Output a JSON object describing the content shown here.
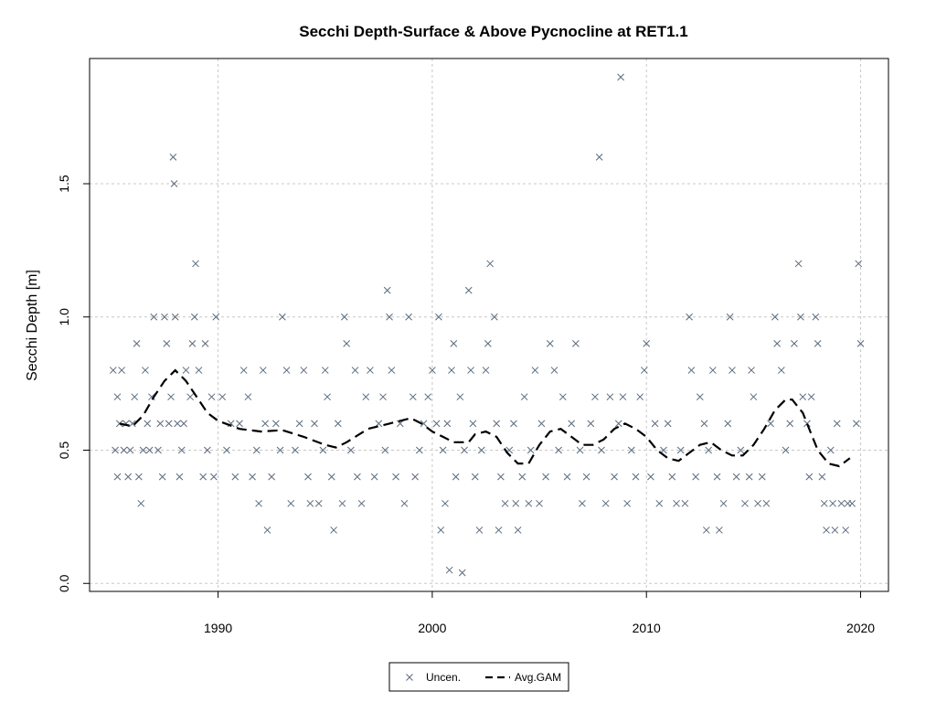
{
  "chart_data": {
    "type": "scatter",
    "title": "Secchi Depth-Surface & Above Pycnocline at RET1.1",
    "xlabel": "",
    "ylabel": "Secchi Depth [m]",
    "xlim": [
      1984,
      2021.3
    ],
    "ylim": [
      -0.03,
      1.97
    ],
    "x_ticks": [
      1990,
      2000,
      2010,
      2020
    ],
    "y_ticks": [
      0.0,
      0.5,
      1.0,
      1.5
    ],
    "y_tick_labels": [
      "0.0",
      "0.5",
      "1.0",
      "1.5"
    ],
    "grid": true,
    "legend_position": "bottom-center",
    "colors": {
      "points": "#5b6a7b",
      "gam_line": "#000000",
      "grid": "#c8c8c8"
    },
    "series": [
      {
        "name": "Uncen.",
        "kind": "points",
        "marker": "x",
        "points": [
          [
            1985.1,
            0.8
          ],
          [
            1985.2,
            0.5
          ],
          [
            1985.3,
            0.7
          ],
          [
            1985.3,
            0.4
          ],
          [
            1985.4,
            0.6
          ],
          [
            1985.5,
            0.8
          ],
          [
            1985.6,
            0.5
          ],
          [
            1985.7,
            0.6
          ],
          [
            1985.8,
            0.4
          ],
          [
            1985.9,
            0.5
          ],
          [
            1986.0,
            0.6
          ],
          [
            1986.1,
            0.7
          ],
          [
            1986.2,
            0.9
          ],
          [
            1986.3,
            0.4
          ],
          [
            1986.4,
            0.3
          ],
          [
            1986.5,
            0.5
          ],
          [
            1986.6,
            0.8
          ],
          [
            1986.7,
            0.6
          ],
          [
            1986.8,
            0.5
          ],
          [
            1986.9,
            0.7
          ],
          [
            1987.0,
            1.0
          ],
          [
            1987.2,
            0.5
          ],
          [
            1987.3,
            0.6
          ],
          [
            1987.4,
            0.4
          ],
          [
            1987.5,
            1.0
          ],
          [
            1987.6,
            0.9
          ],
          [
            1987.7,
            0.6
          ],
          [
            1987.8,
            0.7
          ],
          [
            1987.9,
            1.6
          ],
          [
            1987.95,
            1.5
          ],
          [
            1988.0,
            1.0
          ],
          [
            1988.1,
            0.6
          ],
          [
            1988.2,
            0.4
          ],
          [
            1988.3,
            0.5
          ],
          [
            1988.4,
            0.6
          ],
          [
            1988.5,
            0.8
          ],
          [
            1988.7,
            0.7
          ],
          [
            1988.8,
            0.9
          ],
          [
            1988.9,
            1.0
          ],
          [
            1988.95,
            1.2
          ],
          [
            1989.1,
            0.8
          ],
          [
            1989.3,
            0.4
          ],
          [
            1989.4,
            0.9
          ],
          [
            1989.5,
            0.5
          ],
          [
            1989.7,
            0.7
          ],
          [
            1989.8,
            0.4
          ],
          [
            1989.9,
            1.0
          ],
          [
            1990.2,
            0.7
          ],
          [
            1990.4,
            0.5
          ],
          [
            1990.6,
            0.6
          ],
          [
            1990.8,
            0.4
          ],
          [
            1991.0,
            0.6
          ],
          [
            1991.2,
            0.8
          ],
          [
            1991.4,
            0.7
          ],
          [
            1991.6,
            0.4
          ],
          [
            1991.8,
            0.5
          ],
          [
            1991.9,
            0.3
          ],
          [
            1992.1,
            0.8
          ],
          [
            1992.2,
            0.6
          ],
          [
            1992.3,
            0.2
          ],
          [
            1992.5,
            0.4
          ],
          [
            1992.7,
            0.6
          ],
          [
            1992.9,
            0.5
          ],
          [
            1993.0,
            1.0
          ],
          [
            1993.2,
            0.8
          ],
          [
            1993.4,
            0.3
          ],
          [
            1993.6,
            0.5
          ],
          [
            1993.8,
            0.6
          ],
          [
            1994.0,
            0.8
          ],
          [
            1994.2,
            0.4
          ],
          [
            1994.3,
            0.3
          ],
          [
            1994.5,
            0.6
          ],
          [
            1994.7,
            0.3
          ],
          [
            1994.9,
            0.5
          ],
          [
            1995.0,
            0.8
          ],
          [
            1995.1,
            0.7
          ],
          [
            1995.3,
            0.4
          ],
          [
            1995.4,
            0.2
          ],
          [
            1995.6,
            0.6
          ],
          [
            1995.8,
            0.3
          ],
          [
            1995.9,
            1.0
          ],
          [
            1996.0,
            0.9
          ],
          [
            1996.2,
            0.5
          ],
          [
            1996.4,
            0.8
          ],
          [
            1996.5,
            0.4
          ],
          [
            1996.7,
            0.3
          ],
          [
            1996.9,
            0.7
          ],
          [
            1997.1,
            0.8
          ],
          [
            1997.3,
            0.4
          ],
          [
            1997.5,
            0.6
          ],
          [
            1997.7,
            0.7
          ],
          [
            1997.8,
            0.5
          ],
          [
            1997.9,
            1.1
          ],
          [
            1998.0,
            1.0
          ],
          [
            1998.1,
            0.8
          ],
          [
            1998.3,
            0.4
          ],
          [
            1998.5,
            0.6
          ],
          [
            1998.7,
            0.3
          ],
          [
            1998.9,
            1.0
          ],
          [
            1999.1,
            0.7
          ],
          [
            1999.2,
            0.4
          ],
          [
            1999.4,
            0.5
          ],
          [
            1999.6,
            0.6
          ],
          [
            1999.8,
            0.7
          ],
          [
            2000.0,
            0.8
          ],
          [
            2000.2,
            0.6
          ],
          [
            2000.3,
            1.0
          ],
          [
            2000.4,
            0.2
          ],
          [
            2000.5,
            0.5
          ],
          [
            2000.6,
            0.3
          ],
          [
            2000.7,
            0.6
          ],
          [
            2000.8,
            0.05
          ],
          [
            2000.9,
            0.8
          ],
          [
            2001.0,
            0.9
          ],
          [
            2001.1,
            0.4
          ],
          [
            2001.3,
            0.7
          ],
          [
            2001.4,
            0.04
          ],
          [
            2001.5,
            0.5
          ],
          [
            2001.7,
            1.1
          ],
          [
            2001.8,
            0.8
          ],
          [
            2001.9,
            0.6
          ],
          [
            2002.0,
            0.4
          ],
          [
            2002.2,
            0.2
          ],
          [
            2002.3,
            0.5
          ],
          [
            2002.5,
            0.8
          ],
          [
            2002.6,
            0.9
          ],
          [
            2002.7,
            1.2
          ],
          [
            2002.9,
            1.0
          ],
          [
            2003.0,
            0.6
          ],
          [
            2003.1,
            0.2
          ],
          [
            2003.2,
            0.4
          ],
          [
            2003.4,
            0.3
          ],
          [
            2003.6,
            0.5
          ],
          [
            2003.8,
            0.6
          ],
          [
            2003.9,
            0.3
          ],
          [
            2004.0,
            0.2
          ],
          [
            2004.2,
            0.4
          ],
          [
            2004.3,
            0.7
          ],
          [
            2004.5,
            0.3
          ],
          [
            2004.6,
            0.5
          ],
          [
            2004.8,
            0.8
          ],
          [
            2005.0,
            0.3
          ],
          [
            2005.1,
            0.6
          ],
          [
            2005.3,
            0.4
          ],
          [
            2005.5,
            0.9
          ],
          [
            2005.7,
            0.8
          ],
          [
            2005.9,
            0.5
          ],
          [
            2006.1,
            0.7
          ],
          [
            2006.3,
            0.4
          ],
          [
            2006.5,
            0.6
          ],
          [
            2006.7,
            0.9
          ],
          [
            2006.9,
            0.5
          ],
          [
            2007.0,
            0.3
          ],
          [
            2007.2,
            0.4
          ],
          [
            2007.4,
            0.6
          ],
          [
            2007.6,
            0.7
          ],
          [
            2007.8,
            1.6
          ],
          [
            2007.9,
            0.5
          ],
          [
            2008.1,
            0.3
          ],
          [
            2008.3,
            0.7
          ],
          [
            2008.5,
            0.4
          ],
          [
            2008.7,
            0.6
          ],
          [
            2008.8,
            1.9
          ],
          [
            2008.9,
            0.7
          ],
          [
            2009.1,
            0.3
          ],
          [
            2009.3,
            0.5
          ],
          [
            2009.5,
            0.4
          ],
          [
            2009.7,
            0.7
          ],
          [
            2009.9,
            0.8
          ],
          [
            2010.0,
            0.9
          ],
          [
            2010.2,
            0.4
          ],
          [
            2010.4,
            0.6
          ],
          [
            2010.6,
            0.3
          ],
          [
            2010.8,
            0.5
          ],
          [
            2011.0,
            0.6
          ],
          [
            2011.2,
            0.4
          ],
          [
            2011.4,
            0.3
          ],
          [
            2011.6,
            0.5
          ],
          [
            2011.8,
            0.3
          ],
          [
            2012.0,
            1.0
          ],
          [
            2012.1,
            0.8
          ],
          [
            2012.3,
            0.4
          ],
          [
            2012.5,
            0.7
          ],
          [
            2012.7,
            0.6
          ],
          [
            2012.8,
            0.2
          ],
          [
            2012.9,
            0.5
          ],
          [
            2013.1,
            0.8
          ],
          [
            2013.3,
            0.4
          ],
          [
            2013.4,
            0.2
          ],
          [
            2013.6,
            0.3
          ],
          [
            2013.8,
            0.6
          ],
          [
            2013.9,
            1.0
          ],
          [
            2014.0,
            0.8
          ],
          [
            2014.2,
            0.4
          ],
          [
            2014.4,
            0.5
          ],
          [
            2014.6,
            0.3
          ],
          [
            2014.8,
            0.4
          ],
          [
            2014.9,
            0.8
          ],
          [
            2015.0,
            0.7
          ],
          [
            2015.2,
            0.3
          ],
          [
            2015.4,
            0.4
          ],
          [
            2015.6,
            0.3
          ],
          [
            2015.8,
            0.6
          ],
          [
            2016.0,
            1.0
          ],
          [
            2016.1,
            0.9
          ],
          [
            2016.3,
            0.8
          ],
          [
            2016.5,
            0.5
          ],
          [
            2016.7,
            0.6
          ],
          [
            2016.9,
            0.9
          ],
          [
            2017.1,
            1.2
          ],
          [
            2017.2,
            1.0
          ],
          [
            2017.3,
            0.7
          ],
          [
            2017.5,
            0.6
          ],
          [
            2017.6,
            0.4
          ],
          [
            2017.7,
            0.7
          ],
          [
            2017.9,
            1.0
          ],
          [
            2018.0,
            0.9
          ],
          [
            2018.2,
            0.4
          ],
          [
            2018.3,
            0.3
          ],
          [
            2018.4,
            0.2
          ],
          [
            2018.6,
            0.5
          ],
          [
            2018.7,
            0.3
          ],
          [
            2018.8,
            0.2
          ],
          [
            2018.9,
            0.6
          ],
          [
            2019.1,
            0.3
          ],
          [
            2019.3,
            0.2
          ],
          [
            2019.4,
            0.3
          ],
          [
            2019.6,
            0.3
          ],
          [
            2019.8,
            0.6
          ],
          [
            2019.9,
            1.2
          ],
          [
            2020.0,
            0.9
          ]
        ]
      },
      {
        "name": "Avg.GAM",
        "kind": "line",
        "style": "dashed",
        "points": [
          [
            1985.4,
            0.6
          ],
          [
            1986.0,
            0.59
          ],
          [
            1986.5,
            0.63
          ],
          [
            1987.0,
            0.7
          ],
          [
            1987.5,
            0.76
          ],
          [
            1988.0,
            0.8
          ],
          [
            1988.5,
            0.76
          ],
          [
            1989.0,
            0.7
          ],
          [
            1989.5,
            0.64
          ],
          [
            1990.0,
            0.61
          ],
          [
            1991.0,
            0.58
          ],
          [
            1992.0,
            0.57
          ],
          [
            1993.0,
            0.575
          ],
          [
            1994.0,
            0.55
          ],
          [
            1995.0,
            0.52
          ],
          [
            1995.5,
            0.51
          ],
          [
            1996.0,
            0.53
          ],
          [
            1997.0,
            0.58
          ],
          [
            1998.0,
            0.6
          ],
          [
            1999.0,
            0.62
          ],
          [
            1999.5,
            0.6
          ],
          [
            2000.0,
            0.57
          ],
          [
            2000.5,
            0.55
          ],
          [
            2001.0,
            0.53
          ],
          [
            2001.7,
            0.53
          ],
          [
            2002.0,
            0.56
          ],
          [
            2002.5,
            0.57
          ],
          [
            2003.0,
            0.55
          ],
          [
            2003.5,
            0.49
          ],
          [
            2004.0,
            0.45
          ],
          [
            2004.5,
            0.45
          ],
          [
            2005.0,
            0.52
          ],
          [
            2005.5,
            0.57
          ],
          [
            2006.0,
            0.58
          ],
          [
            2006.5,
            0.55
          ],
          [
            2007.0,
            0.52
          ],
          [
            2007.5,
            0.52
          ],
          [
            2008.0,
            0.54
          ],
          [
            2008.5,
            0.58
          ],
          [
            2009.0,
            0.6
          ],
          [
            2009.5,
            0.58
          ],
          [
            2010.0,
            0.55
          ],
          [
            2010.5,
            0.5
          ],
          [
            2011.0,
            0.47
          ],
          [
            2011.5,
            0.46
          ],
          [
            2012.0,
            0.49
          ],
          [
            2012.5,
            0.52
          ],
          [
            2013.0,
            0.53
          ],
          [
            2013.5,
            0.5
          ],
          [
            2014.0,
            0.48
          ],
          [
            2014.5,
            0.48
          ],
          [
            2015.0,
            0.52
          ],
          [
            2015.5,
            0.58
          ],
          [
            2016.0,
            0.65
          ],
          [
            2016.5,
            0.69
          ],
          [
            2016.8,
            0.69
          ],
          [
            2017.3,
            0.64
          ],
          [
            2017.7,
            0.56
          ],
          [
            2018.0,
            0.5
          ],
          [
            2018.5,
            0.45
          ],
          [
            2019.0,
            0.44
          ],
          [
            2019.5,
            0.47
          ]
        ]
      }
    ]
  }
}
